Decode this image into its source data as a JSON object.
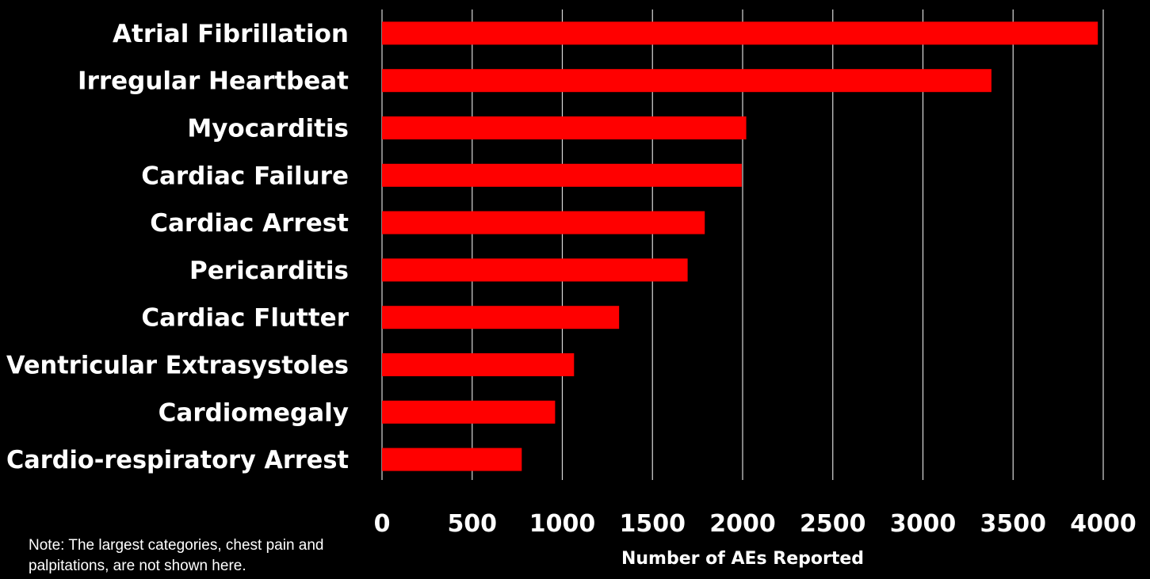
{
  "chart_data": {
    "type": "bar",
    "orientation": "horizontal",
    "categories": [
      "Atrial Fibrillation",
      "Irregular Heartbeat",
      "Myocarditis",
      "Cardiac Failure",
      "Cardiac Arrest",
      "Pericarditis",
      "Cardiac Flutter",
      "Ventricular Extrasystoles",
      "Cardiomegaly",
      "Cardio-respiratory Arrest"
    ],
    "values": [
      3970,
      3380,
      2020,
      1995,
      1790,
      1695,
      1315,
      1065,
      960,
      775
    ],
    "title": "",
    "xlabel": "Number of AEs Reported",
    "ylabel": "",
    "xlim": [
      0,
      4000
    ],
    "xticks": [
      "0",
      "500",
      "1000",
      "1500",
      "2000",
      "2500",
      "3000",
      "3500",
      "4000"
    ],
    "grid": "vertical",
    "legend": "none",
    "colors": {
      "background": "#000000",
      "bar": "#ff0000",
      "grid": "#d9d9d9",
      "text": "#ffffff"
    },
    "note": "Note: The largest categories, chest pain and palpitations, are not shown here."
  }
}
